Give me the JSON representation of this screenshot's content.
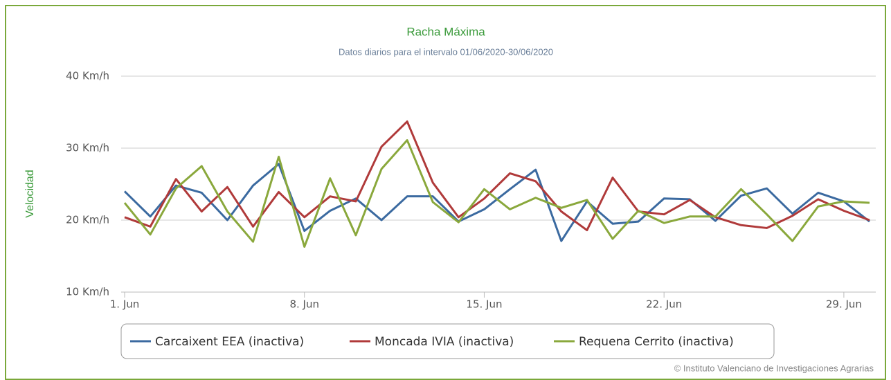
{
  "chart_data": {
    "type": "line",
    "title": "Racha Máxima",
    "subtitle": "Datos diarios para el intervalo 01/06/2020-30/06/2020",
    "y_label": "Velocidad",
    "credit": "© Instituto Valenciano de Investigaciones Agrarias",
    "categories": [
      "1. Jun",
      null,
      null,
      null,
      null,
      null,
      null,
      "8. Jun",
      null,
      null,
      null,
      null,
      null,
      null,
      "15. Jun",
      null,
      null,
      null,
      null,
      null,
      null,
      "22. Jun",
      null,
      null,
      null,
      null,
      null,
      null,
      "29. Jun",
      null
    ],
    "ylim": [
      10,
      40
    ],
    "yticks": [
      {
        "value": 10,
        "label": "10 Km/h"
      },
      {
        "value": 20,
        "label": "20 Km/h"
      },
      {
        "value": 30,
        "label": "30 Km/h"
      },
      {
        "value": 40,
        "label": "40 Km/h"
      }
    ],
    "grid": true,
    "series": [
      {
        "name": "Carcaixent EEA (inactiva)",
        "color": "#3b6aa0",
        "values": [
          24.0,
          20.5,
          24.8,
          23.8,
          20.0,
          24.8,
          27.8,
          18.5,
          21.3,
          23.0,
          20.0,
          23.3,
          23.3,
          19.8,
          21.5,
          24.3,
          27.0,
          17.1,
          22.6,
          19.5,
          19.8,
          23.0,
          22.9,
          19.9,
          23.4,
          24.4,
          20.9,
          23.8,
          22.6,
          19.8
        ]
      },
      {
        "name": "Moncada IVIA (inactiva)",
        "color": "#b03a3a",
        "values": [
          20.4,
          19.1,
          25.7,
          21.2,
          24.6,
          19.1,
          23.9,
          20.4,
          23.3,
          22.6,
          30.2,
          33.7,
          25.2,
          20.4,
          23.0,
          26.5,
          25.4,
          21.2,
          18.6,
          25.9,
          21.2,
          20.8,
          22.8,
          20.4,
          19.3,
          18.9,
          20.6,
          22.9,
          21.3,
          20.0
        ]
      },
      {
        "name": "Requena Cerrito (inactiva)",
        "color": "#8aa83c",
        "values": [
          22.4,
          18.0,
          24.4,
          27.5,
          21.2,
          17.0,
          28.8,
          16.3,
          25.8,
          17.9,
          27.1,
          31.1,
          22.5,
          19.7,
          24.3,
          21.5,
          23.1,
          21.7,
          22.8,
          17.4,
          21.3,
          19.6,
          20.5,
          20.5,
          24.3,
          20.8,
          17.1,
          21.9,
          22.6,
          22.4
        ]
      }
    ]
  }
}
